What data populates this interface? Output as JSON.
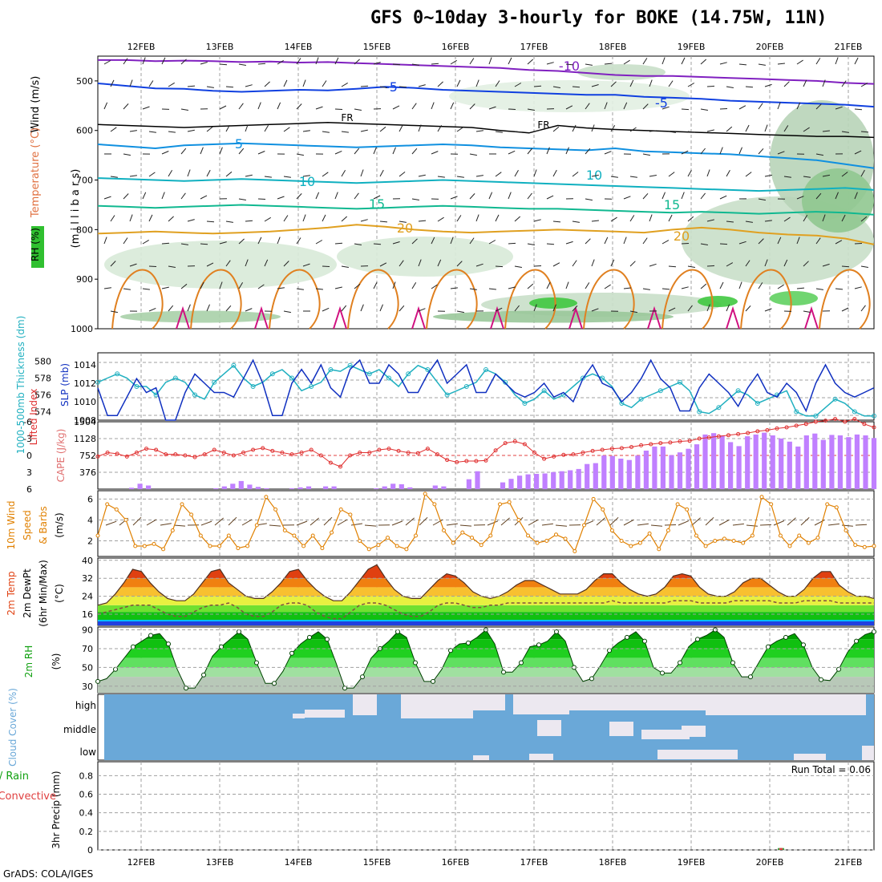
{
  "title": "GFS 0~10day 3-hourly for BOKE (14.75W, 11N)",
  "credit": "GrADS: COLA/IGES",
  "colors": {
    "wind_speed": "#e08000",
    "cape": "#c080ff",
    "lifted_index": "#e03030",
    "slp": "#1030c0",
    "thickness": "#20b0c0",
    "temp_fill": "#e04010",
    "rh_fill": "#10c010",
    "cloud": "#6aa8d8",
    "grid": "#a0a0a0"
  },
  "chart_data": {
    "type": "meteogram",
    "dates": [
      "12FEB",
      "13FEB",
      "14FEB",
      "15FEB",
      "16FEB",
      "17FEB",
      "18FEB",
      "19FEB",
      "20FEB",
      "21FEB"
    ],
    "grid": true,
    "panels": {
      "upper_air": {
        "ylabel": "(m i l l i b a r s)",
        "legend_labels": [
          "Wind (m/s)",
          "Temperature (°C)",
          "RH (%)"
        ],
        "ylim": [
          1000,
          450
        ],
        "yticks": [
          "500",
          "600",
          "700",
          "800",
          "900",
          "1000"
        ],
        "isotherm_labels": [
          "-10",
          "-5",
          "-5",
          "5",
          "10",
          "10",
          "15",
          "15",
          "20",
          "20",
          "FR",
          "FR"
        ],
        "isotherms": [
          {
            "label": "-10",
            "values": [
              458,
              458,
              460,
              459,
              460,
              462,
              461,
              463,
              462,
              464,
              466,
              468,
              470,
              472,
              474,
              478,
              480,
              484,
              488,
              490,
              490,
              492,
              494,
              496,
              498,
              500,
              504,
              506
            ]
          },
          {
            "label": "-5",
            "values": [
              505,
              510,
              515,
              516,
              520,
              522,
              520,
              518,
              519,
              516,
              512,
              514,
              518,
              520,
              522,
              524,
              526,
              528,
              528,
              532,
              534,
              536,
              540,
              542,
              544,
              546,
              548,
              552
            ]
          },
          {
            "label": "0 (FR)",
            "values": [
              588,
              590,
              592,
              594,
              592,
              590,
              588,
              586,
              584,
              586,
              588,
              590,
              592,
              594,
              600,
              605,
              590,
              595,
              598,
              600,
              602,
              604,
              606,
              608,
              610,
              612,
              612,
              614
            ]
          },
          {
            "label": "5",
            "values": [
              628,
              632,
              636,
              630,
              628,
              626,
              628,
              630,
              632,
              634,
              632,
              630,
              628,
              630,
              634,
              636,
              638,
              640,
              636,
              642,
              644,
              646,
              648,
              652,
              656,
              660,
              668,
              676
            ]
          },
          {
            "label": "10",
            "values": [
              696,
              698,
              700,
              702,
              700,
              698,
              700,
              702,
              704,
              706,
              704,
              702,
              700,
              702,
              704,
              706,
              708,
              710,
              712,
              714,
              716,
              718,
              720,
              722,
              720,
              718,
              716,
              720
            ]
          },
          {
            "label": "15",
            "values": [
              752,
              754,
              756,
              754,
              752,
              750,
              752,
              754,
              756,
              758,
              756,
              754,
              752,
              754,
              756,
              758,
              758,
              760,
              762,
              764,
              766,
              764,
              766,
              768,
              766,
              764,
              766,
              770
            ]
          },
          {
            "label": "20",
            "values": [
              808,
              806,
              804,
              806,
              808,
              806,
              804,
              800,
              796,
              790,
              794,
              800,
              804,
              806,
              804,
              802,
              800,
              802,
              804,
              806,
              800,
              796,
              800,
              806,
              810,
              812,
              818,
              830
            ]
          }
        ]
      },
      "thickness_slp": {
        "ylabel_left": "1000-500mb Thickness (dm)",
        "ylabel_right": "SLP (mb)",
        "left_ticks": [
          "580",
          "578",
          "576",
          "574"
        ],
        "right_ticks": [
          "1014",
          "1012",
          "1010",
          "1008"
        ],
        "thickness_range": [
          573,
          581
        ],
        "slp_range": [
          1008,
          1015.3
        ],
        "thickness": [
          577.5,
          578.0,
          578.5,
          578.0,
          577.0,
          577.0,
          576.0,
          577.5,
          578.0,
          577.5,
          576.0,
          575.5,
          577.5,
          578.5,
          579.5,
          578.0,
          577.0,
          577.5,
          578.5,
          579.0,
          578.0,
          576.5,
          577.0,
          577.5,
          579.0,
          578.8,
          579.5,
          579.0,
          578.5,
          579.0,
          578.0,
          577.0,
          578.5,
          579.5,
          579.0,
          577.5,
          576.0,
          576.5,
          577.0,
          577.5,
          579.0,
          578.5,
          577.5,
          576.0,
          575.0,
          575.5,
          576.5,
          575.5,
          576.0,
          577.0,
          578.0,
          578.5,
          578.0,
          577.0,
          575.0,
          574.5,
          575.5,
          576.0,
          576.5,
          577.0,
          577.5,
          576.5,
          574.0,
          573.8,
          574.5,
          575.5,
          576.5,
          576.0,
          575.0,
          575.5,
          576.0,
          576.5,
          574.0,
          573.5,
          573.5,
          574.5,
          575.5,
          575.0,
          574.0,
          573.5,
          573.5
        ],
        "slp": [
          1011.5,
          1008.5,
          1008.5,
          1010.5,
          1012.5,
          1011.0,
          1011.5,
          1008.0,
          1008.0,
          1011.0,
          1013.0,
          1012.0,
          1011.0,
          1011.0,
          1010.5,
          1012.5,
          1014.5,
          1012.0,
          1008.5,
          1008.5,
          1012.0,
          1013.5,
          1012.0,
          1014.0,
          1011.5,
          1010.5,
          1013.5,
          1014.5,
          1012.0,
          1012.0,
          1014.0,
          1013.0,
          1011.0,
          1011.0,
          1013.0,
          1014.5,
          1012.0,
          1013.0,
          1014.0,
          1011.0,
          1011.0,
          1013.0,
          1012.0,
          1011.0,
          1010.5,
          1011.0,
          1012.0,
          1010.5,
          1011.0,
          1010.0,
          1012.5,
          1014.0,
          1012.0,
          1011.5,
          1010.0,
          1011.0,
          1012.5,
          1014.5,
          1012.5,
          1011.5,
          1009.0,
          1009.0,
          1011.5,
          1013.0,
          1012.0,
          1011.0,
          1009.5,
          1011.5,
          1013.0,
          1011.0,
          1010.5,
          1012.0,
          1011.0,
          1009.0,
          1012.0,
          1014.0,
          1012.0,
          1011.0,
          1010.5,
          1011.0,
          1011.5
        ]
      },
      "cape_li": {
        "ylabel_left": "Lifted Index",
        "ylabel_right": "CAPE (J/kg)",
        "li_ticks": [
          "-6",
          "-3",
          "0",
          "3",
          "6"
        ],
        "cape_ticks": [
          "1504",
          "1128",
          "752",
          "376"
        ],
        "cape_max": 1504,
        "li_range": [
          -6,
          6
        ],
        "lifted_index": [
          0.2,
          -0.5,
          -0.3,
          0.2,
          -0.5,
          -1.2,
          -1.0,
          -0.2,
          -0.2,
          0,
          0.3,
          -0.2,
          -1.0,
          -0.5,
          0,
          -0.5,
          -1.0,
          -1.3,
          -0.8,
          -0.5,
          -0.2,
          -0.5,
          -1.0,
          0,
          1.3,
          2.0,
          0,
          -0.5,
          -0.5,
          -1.0,
          -1.2,
          -0.8,
          -0.5,
          -0.4,
          -1.2,
          -0.2,
          0.8,
          1.2,
          1.0,
          1.0,
          0.9,
          -0.9,
          -2.2,
          -2.5,
          -2.0,
          -0.5,
          0.6,
          0.2,
          -0.1,
          -0.2,
          -0.5,
          -0.8,
          -1.0,
          -1.2,
          -1.3,
          -1.5,
          -1.8,
          -2.0,
          -2.2,
          -2.3,
          -2.5,
          -2.6,
          -3.0,
          -3.2,
          -3.4,
          -3.6,
          -3.8,
          -4.0,
          -4.3,
          -4.5,
          -4.8,
          -5.0,
          -5.3,
          -5.6,
          -6.0,
          -6.2,
          -6.5,
          -6.0,
          -6.5,
          -5.6,
          -5.0
        ],
        "cape": [
          0,
          0,
          0,
          0,
          30,
          120,
          80,
          0,
          0,
          0,
          0,
          0,
          0,
          0,
          20,
          60,
          120,
          180,
          100,
          50,
          20,
          0,
          0,
          20,
          40,
          60,
          0,
          60,
          60,
          0,
          0,
          0,
          0,
          20,
          60,
          120,
          110,
          40,
          0,
          0,
          80,
          60,
          0,
          0,
          220,
          400,
          0,
          0,
          150,
          230,
          300,
          330,
          340,
          350,
          380,
          400,
          420,
          450,
          560,
          580,
          750,
          740,
          680,
          650,
          750,
          860,
          950,
          950,
          760,
          820,
          900,
          1000,
          1220,
          1250,
          1200,
          1050,
          960,
          1180,
          1220,
          1260,
          1200,
          1130,
          1060,
          950,
          1200,
          1240,
          1100,
          1210,
          1200,
          1160,
          1220,
          1200,
          1140
        ]
      },
      "wind10m": {
        "ylabel": [
          "10m Wind",
          "Speed",
          "& Barbs",
          "(m/s)"
        ],
        "yticks": [
          "6",
          "4",
          "2"
        ],
        "ylim": [
          0.5,
          6.8
        ],
        "values": [
          2.5,
          5.5,
          5.0,
          4.0,
          1.5,
          1.5,
          1.7,
          1.2,
          3.0,
          5.5,
          4.5,
          2.5,
          1.5,
          1.5,
          2.5,
          1.3,
          1.5,
          3.5,
          6.2,
          5.0,
          3.0,
          2.5,
          1.5,
          2.5,
          1.3,
          2.8,
          5.0,
          4.5,
          2.0,
          1.2,
          1.6,
          2.3,
          1.5,
          1.2,
          2.5,
          6.5,
          5.5,
          3.0,
          1.8,
          2.8,
          2.3,
          1.6,
          2.5,
          5.5,
          5.7,
          4.0,
          2.5,
          1.8,
          2.0,
          2.6,
          2.2,
          1.0,
          3.5,
          6.0,
          5.0,
          3.0,
          2.0,
          1.5,
          1.8,
          2.7,
          1.2,
          3.0,
          5.5,
          5.0,
          2.5,
          1.5,
          2.0,
          2.2,
          2.0,
          1.8,
          2.5,
          6.2,
          5.5,
          2.5,
          1.5,
          2.5,
          1.8,
          2.3,
          5.5,
          5.2,
          3.0,
          1.6,
          1.4,
          1.5
        ]
      },
      "temp2m": {
        "ylabel": [
          "2m Temp",
          "2m DewPt",
          "(6hr Min/Max)",
          "(°C)"
        ],
        "yticks": [
          "40",
          "32",
          "24",
          "16"
        ],
        "ylim": [
          11,
          41
        ],
        "temp": [
          20,
          21,
          25,
          30,
          36,
          35,
          30,
          26,
          23,
          22,
          22,
          25,
          30,
          35,
          36,
          30,
          27,
          24,
          23,
          23,
          26,
          30,
          35,
          36,
          31,
          27,
          24,
          22,
          22,
          26,
          31,
          36,
          38,
          32,
          27,
          24,
          23,
          23,
          27,
          31,
          34,
          33,
          30,
          26,
          24,
          23,
          24,
          26,
          29,
          31,
          31,
          29,
          27,
          25,
          25,
          25,
          27,
          31,
          34,
          34,
          30,
          27,
          25,
          24,
          25,
          28,
          33,
          34,
          33,
          28,
          25,
          24,
          24,
          26,
          30,
          32,
          32,
          29,
          26,
          24,
          24,
          27,
          32,
          35,
          35,
          29,
          26,
          24,
          24,
          23
        ],
        "dewpt": [
          16,
          17,
          18,
          19,
          20,
          20,
          20,
          18,
          16,
          15,
          15,
          17,
          19,
          20,
          20,
          21,
          19,
          16,
          15,
          15,
          17,
          20,
          21,
          21,
          20,
          17,
          15,
          14,
          14,
          17,
          20,
          21,
          21,
          20,
          18,
          16,
          15,
          15,
          17,
          20,
          21,
          21,
          20,
          19,
          19,
          20,
          20,
          21,
          21,
          21,
          21,
          21,
          21,
          21,
          21,
          21,
          21,
          21,
          21,
          22,
          21,
          21,
          21,
          21,
          21,
          21,
          22,
          22,
          22,
          21,
          21,
          21,
          21,
          22,
          22,
          22,
          22,
          22,
          21,
          21,
          21,
          22,
          22,
          22,
          22,
          21,
          21,
          21,
          21,
          21
        ]
      },
      "rh2m": {
        "ylabel": [
          "2m RH",
          "(%)"
        ],
        "yticks": [
          "90",
          "70",
          "50",
          "30"
        ],
        "ylim": [
          23,
          93
        ],
        "values": [
          35,
          38,
          48,
          60,
          72,
          78,
          84,
          86,
          75,
          48,
          28,
          28,
          42,
          62,
          72,
          80,
          88,
          80,
          55,
          33,
          33,
          46,
          65,
          75,
          82,
          88,
          80,
          55,
          28,
          28,
          40,
          60,
          70,
          78,
          88,
          82,
          55,
          35,
          35,
          48,
          68,
          75,
          76,
          82,
          90,
          75,
          45,
          45,
          55,
          72,
          74,
          78,
          88,
          78,
          50,
          35,
          38,
          52,
          68,
          76,
          82,
          88,
          78,
          50,
          44,
          44,
          55,
          72,
          80,
          84,
          90,
          82,
          55,
          40,
          40,
          56,
          72,
          78,
          82,
          86,
          74,
          50,
          37,
          36,
          48,
          66,
          78,
          85,
          88
        ]
      },
      "cloud": {
        "ylabel": "Cloud Cover (%)",
        "levels": [
          "high",
          "middle",
          "low"
        ]
      },
      "precip": {
        "ylabel": "3hr Precip (mm)",
        "legend_labels": [
          "Total / Rain",
          "Convective"
        ],
        "run_total_label": "Run Total = 0.06",
        "yticks": [
          "0.8",
          "0.6",
          "0.4",
          "0.2",
          "0"
        ],
        "ylim": [
          0,
          0.95
        ],
        "bars": [
          {
            "date": "20FEB",
            "value": 0.02
          }
        ]
      }
    }
  }
}
